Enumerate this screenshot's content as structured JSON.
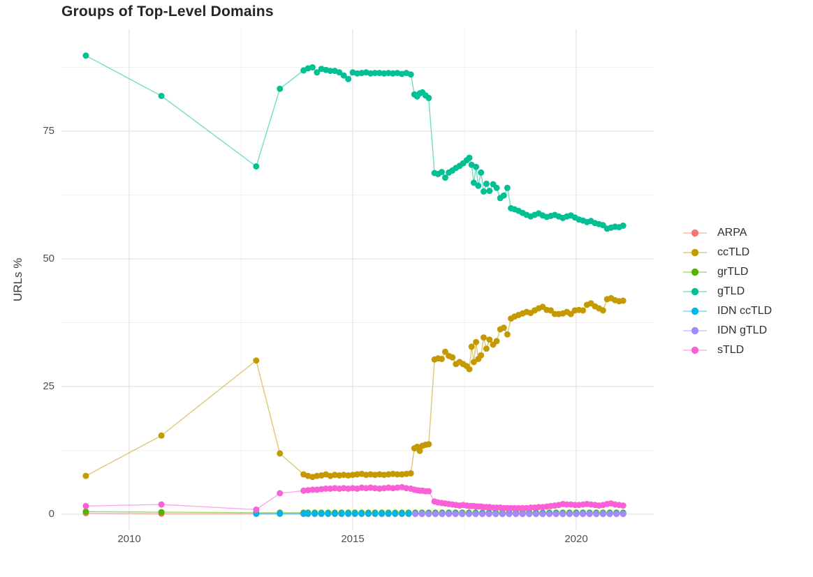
{
  "title": "Groups of Top-Level Domains",
  "chart_data": {
    "type": "line",
    "title": "Groups of Top-Level Domains",
    "xlabel": "",
    "ylabel": "URLs %",
    "x_ticks": [
      2010,
      2015,
      2020
    ],
    "x_minor_gridlines": [
      2012.5,
      2017.5
    ],
    "y_ticks": [
      0,
      25,
      50,
      75
    ],
    "y_minor_gridlines": [
      12.5,
      37.5,
      62.5,
      87.5
    ],
    "x_range": [
      2008.45,
      2021.7
    ],
    "y_range": [
      -3.2,
      94.6
    ],
    "grid": true,
    "legend_position": "right",
    "series": [
      {
        "name": "ARPA",
        "color": "#F8766D",
        "x": [
          2009.03,
          2010.72,
          2012.84,
          2013.37,
          2013.9,
          2014.0,
          2014.15,
          2014.3,
          2014.45,
          2014.6,
          2014.75,
          2014.9,
          2015.05,
          2015.2,
          2015.35,
          2015.5,
          2015.65,
          2015.8,
          2015.95,
          2016.1,
          2016.25,
          2016.4,
          2016.55,
          2016.7,
          2016.85,
          2017.0,
          2017.15,
          2017.3,
          2017.45,
          2017.6,
          2017.75,
          2017.9,
          2018.05,
          2018.2,
          2018.35,
          2018.5,
          2018.65,
          2018.8,
          2018.95,
          2019.1,
          2019.25,
          2019.4,
          2019.55,
          2019.7,
          2019.85,
          2020.0,
          2020.15,
          2020.3,
          2020.45,
          2020.6,
          2020.75,
          2020.9,
          2021.05
        ],
        "y": [
          0.2,
          0.1,
          0.1,
          0.07,
          0.06,
          0.05,
          0.05,
          0.05,
          0.05,
          0.05,
          0.05,
          0.05,
          0.05,
          0.05,
          0.05,
          0.05,
          0.05,
          0.05,
          0.05,
          0.05,
          0.05,
          0.05,
          0.05,
          0.05,
          0.05,
          0.05,
          0.05,
          0.05,
          0.05,
          0.05,
          0.05,
          0.05,
          0.05,
          0.05,
          0.05,
          0.05,
          0.05,
          0.05,
          0.05,
          0.05,
          0.05,
          0.05,
          0.05,
          0.05,
          0.05,
          0.05,
          0.05,
          0.05,
          0.05,
          0.05,
          0.05,
          0.05,
          0.05
        ]
      },
      {
        "name": "ccTLD",
        "color": "#C49A00",
        "x": [
          2009.03,
          2010.72,
          2012.84,
          2013.37,
          2013.9,
          2014.0,
          2014.1,
          2014.2,
          2014.3,
          2014.4,
          2014.5,
          2014.6,
          2014.7,
          2014.8,
          2014.9,
          2015.0,
          2015.1,
          2015.2,
          2015.3,
          2015.4,
          2015.5,
          2015.6,
          2015.7,
          2015.8,
          2015.9,
          2016.0,
          2016.1,
          2016.2,
          2016.3,
          2016.38,
          2016.44,
          2016.5,
          2016.56,
          2016.63,
          2016.7,
          2016.83,
          2016.91,
          2016.99,
          2017.07,
          2017.15,
          2017.23,
          2017.31,
          2017.39,
          2017.47,
          2017.55,
          2017.61,
          2017.66,
          2017.71,
          2017.76,
          2017.81,
          2017.87,
          2017.93,
          2017.99,
          2018.06,
          2018.14,
          2018.22,
          2018.3,
          2018.38,
          2018.46,
          2018.54,
          2018.62,
          2018.71,
          2018.8,
          2018.89,
          2018.98,
          2019.07,
          2019.16,
          2019.25,
          2019.34,
          2019.43,
          2019.52,
          2019.61,
          2019.7,
          2019.79,
          2019.88,
          2019.97,
          2020.06,
          2020.15,
          2020.24,
          2020.33,
          2020.42,
          2020.51,
          2020.6,
          2020.69,
          2020.78,
          2020.87,
          2020.96,
          2021.05
        ],
        "y": [
          7.5,
          15.4,
          30.1,
          11.9,
          7.8,
          7.5,
          7.3,
          7.5,
          7.6,
          7.8,
          7.5,
          7.7,
          7.6,
          7.7,
          7.6,
          7.7,
          7.8,
          7.9,
          7.7,
          7.8,
          7.7,
          7.8,
          7.7,
          7.8,
          7.9,
          7.8,
          7.8,
          7.9,
          8.0,
          12.9,
          13.2,
          12.4,
          13.4,
          13.6,
          13.7,
          30.3,
          30.5,
          30.4,
          31.8,
          31.0,
          30.7,
          29.4,
          29.8,
          29.4,
          29.0,
          28.4,
          32.8,
          29.8,
          33.7,
          30.4,
          31.1,
          34.6,
          32.4,
          34.2,
          33.2,
          33.9,
          36.2,
          36.5,
          35.2,
          38.3,
          38.7,
          39.0,
          39.3,
          39.6,
          39.4,
          39.9,
          40.3,
          40.6,
          40.0,
          39.9,
          39.2,
          39.2,
          39.3,
          39.6,
          39.2,
          39.9,
          40.0,
          39.9,
          41.0,
          41.3,
          40.7,
          40.3,
          39.9,
          42.1,
          42.3,
          41.9,
          41.7,
          41.8
        ]
      },
      {
        "name": "grTLD",
        "color": "#53B400",
        "x": [
          2009.03,
          2010.72,
          2012.84,
          2013.37,
          2013.9,
          2014.0,
          2014.15,
          2014.3,
          2014.45,
          2014.6,
          2014.75,
          2014.9,
          2015.05,
          2015.2,
          2015.35,
          2015.5,
          2015.65,
          2015.8,
          2015.95,
          2016.1,
          2016.25,
          2016.4,
          2016.55,
          2016.7,
          2016.85,
          2017.0,
          2017.15,
          2017.3,
          2017.45,
          2017.6,
          2017.75,
          2017.9,
          2018.05,
          2018.2,
          2018.35,
          2018.5,
          2018.65,
          2018.8,
          2018.95,
          2019.1,
          2019.25,
          2019.4,
          2019.55,
          2019.7,
          2019.85,
          2020.0,
          2020.15,
          2020.3,
          2020.45,
          2020.6,
          2020.75,
          2020.9,
          2021.05
        ],
        "y": [
          0.5,
          0.4,
          0.3,
          0.3,
          0.3,
          0.3,
          0.3,
          0.3,
          0.3,
          0.3,
          0.3,
          0.3,
          0.3,
          0.3,
          0.3,
          0.3,
          0.3,
          0.3,
          0.3,
          0.3,
          0.3,
          0.3,
          0.3,
          0.3,
          0.3,
          0.3,
          0.3,
          0.3,
          0.3,
          0.3,
          0.3,
          0.3,
          0.3,
          0.3,
          0.3,
          0.3,
          0.3,
          0.3,
          0.3,
          0.3,
          0.3,
          0.3,
          0.3,
          0.3,
          0.3,
          0.3,
          0.3,
          0.3,
          0.3,
          0.3,
          0.3,
          0.3,
          0.3
        ]
      },
      {
        "name": "gTLD",
        "color": "#00C094",
        "x": [
          2009.03,
          2010.72,
          2012.84,
          2013.37,
          2013.9,
          2014.0,
          2014.1,
          2014.2,
          2014.3,
          2014.4,
          2014.5,
          2014.6,
          2014.7,
          2014.8,
          2014.9,
          2015.0,
          2015.1,
          2015.2,
          2015.3,
          2015.4,
          2015.5,
          2015.6,
          2015.7,
          2015.8,
          2015.9,
          2016.0,
          2016.1,
          2016.2,
          2016.3,
          2016.38,
          2016.44,
          2016.5,
          2016.56,
          2016.63,
          2016.7,
          2016.83,
          2016.91,
          2016.99,
          2017.07,
          2017.15,
          2017.23,
          2017.31,
          2017.39,
          2017.47,
          2017.55,
          2017.61,
          2017.66,
          2017.71,
          2017.76,
          2017.81,
          2017.87,
          2017.93,
          2017.99,
          2018.06,
          2018.14,
          2018.22,
          2018.3,
          2018.38,
          2018.46,
          2018.54,
          2018.62,
          2018.71,
          2018.8,
          2018.89,
          2018.98,
          2019.07,
          2019.16,
          2019.25,
          2019.34,
          2019.43,
          2019.52,
          2019.61,
          2019.7,
          2019.79,
          2019.88,
          2019.97,
          2020.06,
          2020.15,
          2020.24,
          2020.33,
          2020.42,
          2020.51,
          2020.6,
          2020.69,
          2020.78,
          2020.87,
          2020.96,
          2021.05
        ],
        "y": [
          89.8,
          81.9,
          68.1,
          83.3,
          86.9,
          87.3,
          87.5,
          86.5,
          87.2,
          87.0,
          86.8,
          86.8,
          86.5,
          85.9,
          85.2,
          86.5,
          86.3,
          86.4,
          86.5,
          86.3,
          86.4,
          86.4,
          86.3,
          86.4,
          86.3,
          86.4,
          86.2,
          86.4,
          86.1,
          82.2,
          81.8,
          82.4,
          82.6,
          82.0,
          81.5,
          66.8,
          66.6,
          67.0,
          65.9,
          66.9,
          67.3,
          67.8,
          68.2,
          68.7,
          69.3,
          69.8,
          68.4,
          64.9,
          68.0,
          64.3,
          66.9,
          63.2,
          64.7,
          63.3,
          64.6,
          63.9,
          61.9,
          62.4,
          63.9,
          59.9,
          59.7,
          59.4,
          59.0,
          58.6,
          58.3,
          58.6,
          58.9,
          58.5,
          58.2,
          58.4,
          58.6,
          58.3,
          58.0,
          58.3,
          58.5,
          58.1,
          57.7,
          57.5,
          57.2,
          57.4,
          57.0,
          56.8,
          56.6,
          55.9,
          56.1,
          56.3,
          56.2,
          56.5
        ]
      },
      {
        "name": "IDN ccTLD",
        "color": "#00B6EB",
        "x": [
          2012.84,
          2013.37,
          2013.9,
          2014.0,
          2014.15,
          2014.3,
          2014.45,
          2014.6,
          2014.75,
          2014.9,
          2015.05,
          2015.2,
          2015.35,
          2015.5,
          2015.65,
          2015.8,
          2015.95,
          2016.1,
          2016.25,
          2016.4,
          2016.55,
          2016.7,
          2016.85,
          2017.0,
          2017.15,
          2017.3,
          2017.45,
          2017.6,
          2017.75,
          2017.9,
          2018.05,
          2018.2,
          2018.35,
          2018.5,
          2018.65,
          2018.8,
          2018.95,
          2019.1,
          2019.25,
          2019.4,
          2019.55,
          2019.7,
          2019.85,
          2020.0,
          2020.15,
          2020.3,
          2020.45,
          2020.6,
          2020.75,
          2020.9,
          2021.05
        ],
        "y": [
          0.08,
          0.1,
          0.1,
          0.1,
          0.1,
          0.1,
          0.1,
          0.1,
          0.1,
          0.1,
          0.1,
          0.1,
          0.1,
          0.1,
          0.1,
          0.1,
          0.1,
          0.1,
          0.1,
          0.1,
          0.1,
          0.1,
          0.1,
          0.1,
          0.1,
          0.1,
          0.1,
          0.1,
          0.1,
          0.1,
          0.1,
          0.1,
          0.1,
          0.1,
          0.1,
          0.1,
          0.1,
          0.1,
          0.1,
          0.1,
          0.1,
          0.1,
          0.1,
          0.1,
          0.1,
          0.1,
          0.1,
          0.1,
          0.1,
          0.1,
          0.1
        ]
      },
      {
        "name": "IDN gTLD",
        "color": "#A58AFF",
        "x": [
          2016.4,
          2016.55,
          2016.7,
          2016.85,
          2017.0,
          2017.15,
          2017.3,
          2017.45,
          2017.6,
          2017.75,
          2017.9,
          2018.05,
          2018.2,
          2018.35,
          2018.5,
          2018.65,
          2018.8,
          2018.95,
          2019.1,
          2019.25,
          2019.4,
          2019.55,
          2019.7,
          2019.85,
          2020.0,
          2020.15,
          2020.3,
          2020.45,
          2020.6,
          2020.75,
          2020.9,
          2021.05
        ],
        "y": [
          0.05,
          0.05,
          0.05,
          0.05,
          0.05,
          0.05,
          0.05,
          0.05,
          0.05,
          0.05,
          0.05,
          0.05,
          0.05,
          0.05,
          0.05,
          0.05,
          0.05,
          0.05,
          0.05,
          0.05,
          0.05,
          0.05,
          0.05,
          0.05,
          0.05,
          0.05,
          0.05,
          0.05,
          0.05,
          0.05,
          0.05,
          0.05
        ]
      },
      {
        "name": "sTLD",
        "color": "#FB61D7",
        "x": [
          2009.03,
          2010.72,
          2012.84,
          2013.37,
          2013.9,
          2014.0,
          2014.1,
          2014.2,
          2014.3,
          2014.4,
          2014.5,
          2014.6,
          2014.7,
          2014.8,
          2014.9,
          2015.0,
          2015.1,
          2015.2,
          2015.3,
          2015.4,
          2015.5,
          2015.6,
          2015.7,
          2015.8,
          2015.9,
          2016.0,
          2016.1,
          2016.2,
          2016.3,
          2016.38,
          2016.44,
          2016.5,
          2016.56,
          2016.63,
          2016.7,
          2016.83,
          2016.91,
          2016.99,
          2017.07,
          2017.15,
          2017.23,
          2017.31,
          2017.39,
          2017.47,
          2017.55,
          2017.61,
          2017.66,
          2017.71,
          2017.76,
          2017.81,
          2017.87,
          2017.93,
          2017.99,
          2018.06,
          2018.14,
          2018.22,
          2018.3,
          2018.38,
          2018.46,
          2018.54,
          2018.62,
          2018.71,
          2018.8,
          2018.89,
          2018.98,
          2019.07,
          2019.16,
          2019.25,
          2019.34,
          2019.43,
          2019.52,
          2019.61,
          2019.7,
          2019.79,
          2019.88,
          2019.97,
          2020.06,
          2020.15,
          2020.24,
          2020.33,
          2020.42,
          2020.51,
          2020.6,
          2020.69,
          2020.78,
          2020.87,
          2020.96,
          2021.05
        ],
        "y": [
          1.6,
          1.9,
          0.9,
          4.1,
          4.6,
          4.7,
          4.8,
          4.8,
          4.9,
          5.0,
          5.0,
          5.1,
          5.0,
          5.1,
          5.0,
          5.1,
          5.0,
          5.2,
          5.1,
          5.2,
          5.1,
          5.0,
          5.1,
          5.2,
          5.1,
          5.2,
          5.3,
          5.1,
          5.0,
          4.8,
          4.7,
          4.6,
          4.6,
          4.5,
          4.5,
          2.5,
          2.3,
          2.2,
          2.1,
          2.0,
          1.9,
          1.8,
          1.7,
          1.8,
          1.7,
          1.6,
          1.6,
          1.6,
          1.5,
          1.5,
          1.5,
          1.4,
          1.4,
          1.4,
          1.3,
          1.3,
          1.3,
          1.2,
          1.2,
          1.2,
          1.2,
          1.2,
          1.2,
          1.2,
          1.3,
          1.3,
          1.4,
          1.4,
          1.5,
          1.6,
          1.7,
          1.8,
          2.0,
          1.9,
          1.9,
          1.8,
          1.8,
          1.9,
          2.0,
          1.9,
          1.8,
          1.7,
          1.8,
          2.0,
          2.1,
          1.9,
          1.8,
          1.7
        ]
      }
    ]
  }
}
